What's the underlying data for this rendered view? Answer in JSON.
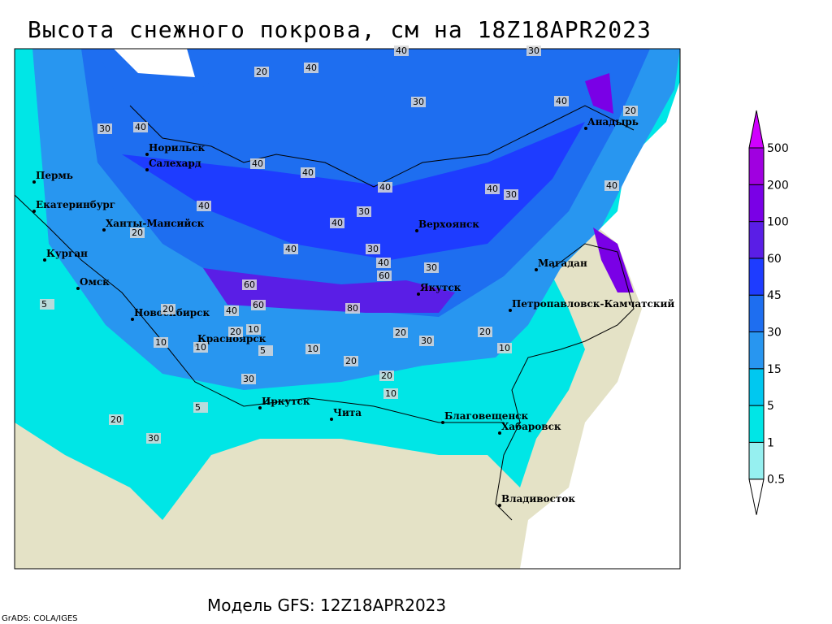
{
  "header": {
    "title": "Высота снежного покрова, см на 18Z18APR2023"
  },
  "footer": {
    "model": "Модель GFS: 12Z18APR2023",
    "credit": "GrADS: COLA/IGES"
  },
  "legend": {
    "levels": [
      {
        "label": "0.5",
        "color": "#96f0f0"
      },
      {
        "label": "1",
        "color": "#00e6e6"
      },
      {
        "label": "5",
        "color": "#00c8f0"
      },
      {
        "label": "15",
        "color": "#2896f0"
      },
      {
        "label": "30",
        "color": "#1e6ef0"
      },
      {
        "label": "45",
        "color": "#1e3cff"
      },
      {
        "label": "60",
        "color": "#5a1ee6"
      },
      {
        "label": "100",
        "color": "#7a00e6"
      },
      {
        "label": "200",
        "color": "#a000e0"
      },
      {
        "label": "500",
        "color": "#d000ff"
      }
    ]
  },
  "map": {
    "cities": [
      "Норильск",
      "Салехард",
      "Пермь",
      "Екатеринбург",
      "Ханты-Мансийск",
      "Курган",
      "Омск",
      "Новосибирск",
      "Красноярск",
      "Иркутск",
      "Чита",
      "Благовещенск",
      "Хабаровск",
      "Владивосток",
      "Верхоянск",
      "Якутск",
      "Магадан",
      "Петропавловск-Камчатский",
      "Анадырь"
    ],
    "contour_labels": [
      40,
      30,
      30,
      20,
      40,
      40,
      20,
      30,
      40,
      40,
      40,
      40,
      30,
      40,
      40,
      30,
      20,
      40,
      40,
      30,
      40,
      60,
      60,
      80,
      60,
      40,
      30,
      20,
      20,
      10,
      10,
      5,
      10,
      20,
      20,
      10,
      20,
      30,
      20,
      10,
      5,
      5,
      10,
      30,
      20,
      30,
      40
    ]
  }
}
